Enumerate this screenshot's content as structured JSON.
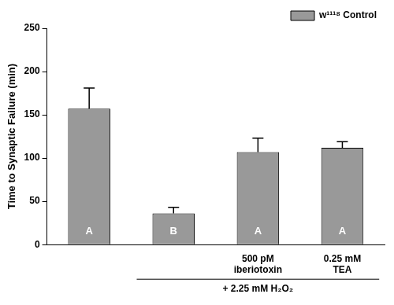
{
  "chart_data": {
    "type": "bar",
    "categories": [
      null,
      null,
      "500 pM iberiotoxin",
      "0.25 mM TEA"
    ],
    "series": [
      {
        "name": "w¹¹¹⁸ Control",
        "color": "#999999",
        "values": [
          157,
          36,
          107,
          112
        ]
      }
    ],
    "errors": [
      24,
      7,
      16,
      7
    ],
    "bar_letters": [
      "A",
      "B",
      "A",
      "A"
    ],
    "group": {
      "text": "+ 2.25 mM H₂O₂",
      "from": 1,
      "to": 3
    },
    "y_label": "Time to Synaptic Failure (min)",
    "ylim": [
      0,
      250
    ],
    "yticks": [
      0,
      50,
      100,
      150,
      200,
      250
    ],
    "grid": false,
    "legend": "top-right"
  }
}
